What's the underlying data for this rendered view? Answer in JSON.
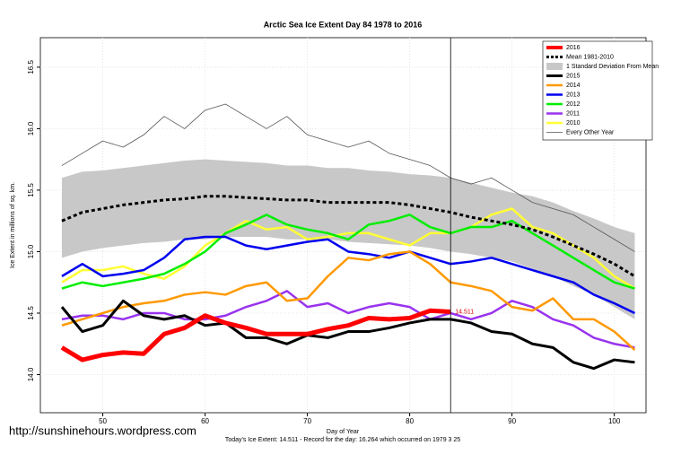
{
  "chart_data": {
    "type": "line",
    "title": "Arctic Sea Ice Extent Day 84 1978 to 2016",
    "xlabel": "Day of Year",
    "ylabel": "Ice Extent in millions of sq. km.",
    "footer": "Today's Ice Extent: 14.511  - Record for the day: 16.264 which occurred on 1979 3 25",
    "watermark": "http://sunshinehours.wordpress.com",
    "xlim": [
      43.9,
      103.1
    ],
    "ylim": [
      13.69,
      16.74
    ],
    "xticks": [
      50,
      60,
      70,
      80,
      90,
      100
    ],
    "yticks": [
      {
        "value": 14,
        "label": "14.0"
      },
      14.5,
      {
        "value": 15,
        "label": "15.0"
      },
      15.5,
      {
        "value": 16,
        "label": "16.0"
      },
      16.5
    ],
    "grid": true,
    "legend": "top-right",
    "vline": 84,
    "annotation": {
      "x": 84,
      "value": 14.511,
      "color": "#e00000"
    },
    "x": [
      46,
      48,
      50,
      52,
      54,
      56,
      58,
      60,
      62,
      64,
      66,
      68,
      70,
      72,
      74,
      76,
      78,
      80,
      82,
      84,
      86,
      88,
      90,
      92,
      94,
      96,
      98,
      100,
      102
    ],
    "band": {
      "name": "1 Standard Deviation From Mean",
      "color": "#c8c8c8",
      "upper": [
        15.6,
        15.65,
        15.66,
        15.68,
        15.7,
        15.72,
        15.74,
        15.75,
        15.74,
        15.73,
        15.72,
        15.7,
        15.7,
        15.68,
        15.68,
        15.66,
        15.65,
        15.63,
        15.62,
        15.6,
        15.56,
        15.52,
        15.48,
        15.45,
        15.4,
        15.33,
        15.27,
        15.2,
        15.15
      ],
      "lower": [
        14.95,
        15.0,
        15.03,
        15.05,
        15.07,
        15.08,
        15.1,
        15.1,
        15.12,
        15.12,
        15.12,
        15.1,
        15.1,
        15.1,
        15.08,
        15.07,
        15.06,
        15.05,
        15.03,
        15.0,
        14.98,
        14.95,
        14.92,
        14.86,
        14.8,
        14.72,
        14.65,
        14.55,
        14.45
      ]
    },
    "series": [
      {
        "name": "2016",
        "color": "#ff0000",
        "linewidth": 5,
        "values": [
          14.22,
          14.12,
          14.16,
          14.18,
          14.17,
          14.33,
          14.38,
          14.48,
          14.42,
          14.38,
          14.33,
          14.33,
          14.33,
          14.37,
          14.4,
          14.46,
          14.45,
          14.46,
          14.52,
          14.511,
          null,
          null,
          null,
          null,
          null,
          null,
          null,
          null,
          null
        ]
      },
      {
        "name": "Mean 1981-2010",
        "color": "#000000",
        "linewidth": 3,
        "dash": true,
        "values": [
          15.25,
          15.32,
          15.35,
          15.38,
          15.4,
          15.42,
          15.43,
          15.45,
          15.45,
          15.44,
          15.43,
          15.42,
          15.42,
          15.4,
          15.4,
          15.4,
          15.4,
          15.38,
          15.35,
          15.32,
          15.28,
          15.25,
          15.22,
          15.18,
          15.12,
          15.05,
          14.98,
          14.9,
          14.8
        ]
      },
      {
        "name": "2015",
        "color": "#000000",
        "linewidth": 3,
        "values": [
          14.55,
          14.35,
          14.4,
          14.6,
          14.48,
          14.45,
          14.48,
          14.4,
          14.42,
          14.3,
          14.3,
          14.25,
          14.32,
          14.3,
          14.35,
          14.35,
          14.38,
          14.42,
          14.45,
          14.45,
          14.42,
          14.35,
          14.33,
          14.25,
          14.22,
          14.1,
          14.05,
          14.12,
          14.1
        ]
      },
      {
        "name": "2014",
        "color": "#ff9900",
        "linewidth": 2.5,
        "values": [
          14.4,
          14.45,
          14.5,
          14.55,
          14.58,
          14.6,
          14.65,
          14.67,
          14.65,
          14.72,
          14.75,
          14.6,
          14.62,
          14.8,
          14.95,
          14.93,
          14.98,
          15.0,
          14.9,
          14.75,
          14.72,
          14.68,
          14.55,
          14.52,
          14.62,
          14.45,
          14.45,
          14.35,
          14.2
        ]
      },
      {
        "name": "2013",
        "color": "#0000ee",
        "linewidth": 2.5,
        "values": [
          14.8,
          14.9,
          14.8,
          14.82,
          14.85,
          14.95,
          15.1,
          15.12,
          15.12,
          15.05,
          15.02,
          15.05,
          15.08,
          15.1,
          15.0,
          14.98,
          14.95,
          15.0,
          14.95,
          14.9,
          14.92,
          14.95,
          14.9,
          14.85,
          14.8,
          14.75,
          14.65,
          14.58,
          14.5
        ]
      },
      {
        "name": "2012",
        "color": "#00ee00",
        "linewidth": 2.5,
        "values": [
          14.7,
          14.75,
          14.72,
          14.75,
          14.78,
          14.82,
          14.9,
          15.0,
          15.15,
          15.22,
          15.3,
          15.22,
          15.18,
          15.15,
          15.1,
          15.22,
          15.25,
          15.3,
          15.2,
          15.15,
          15.2,
          15.2,
          15.25,
          15.15,
          15.05,
          14.95,
          14.85,
          14.75,
          14.7
        ]
      },
      {
        "name": "2011",
        "color": "#9933ee",
        "linewidth": 2.5,
        "values": [
          14.45,
          14.48,
          14.48,
          14.45,
          14.5,
          14.5,
          14.45,
          14.45,
          14.48,
          14.55,
          14.6,
          14.68,
          14.55,
          14.58,
          14.5,
          14.55,
          14.58,
          14.55,
          14.45,
          14.5,
          14.45,
          14.5,
          14.6,
          14.55,
          14.45,
          14.4,
          14.3,
          14.25,
          14.22
        ]
      },
      {
        "name": "2010",
        "color": "#ffff33",
        "linewidth": 2.5,
        "values": [
          14.75,
          14.85,
          14.85,
          14.88,
          14.82,
          14.78,
          14.88,
          15.05,
          15.15,
          15.25,
          15.18,
          15.2,
          15.1,
          15.12,
          15.15,
          15.15,
          15.1,
          15.05,
          15.15,
          15.15,
          15.2,
          15.3,
          15.35,
          15.2,
          15.15,
          15.05,
          14.95,
          14.8,
          14.7
        ]
      },
      {
        "name": "Every Other Year",
        "color": "#555555",
        "linewidth": 0.8,
        "values": [
          15.7,
          15.8,
          15.9,
          15.85,
          15.95,
          16.1,
          16.0,
          16.15,
          16.2,
          16.1,
          16.0,
          16.1,
          15.95,
          15.9,
          15.85,
          15.9,
          15.8,
          15.75,
          15.7,
          15.6,
          15.55,
          15.6,
          15.5,
          15.4,
          15.35,
          15.3,
          15.2,
          15.1,
          15.0
        ]
      }
    ]
  }
}
